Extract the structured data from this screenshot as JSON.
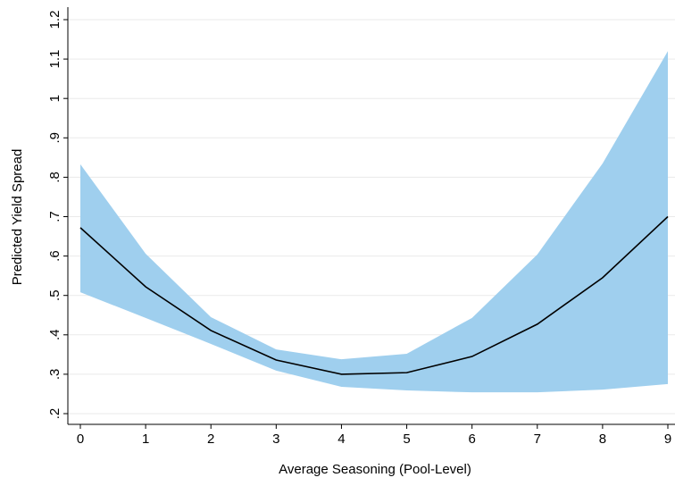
{
  "chart_data": {
    "type": "line",
    "x_label": "Average Seasoning (Pool-Level)",
    "y_label": "Predicted Yield Spread",
    "x": [
      0,
      1,
      2,
      3,
      4,
      5,
      6,
      7,
      8,
      9
    ],
    "values": [
      0.672,
      0.522,
      0.411,
      0.336,
      0.3,
      0.304,
      0.345,
      0.427,
      0.545,
      0.7
    ],
    "color": "#000000",
    "band": {
      "upper": [
        0.833,
        0.606,
        0.445,
        0.363,
        0.338,
        0.352,
        0.443,
        0.604,
        0.835,
        1.12
      ],
      "lower": [
        0.508,
        0.443,
        0.377,
        0.309,
        0.268,
        0.259,
        0.254,
        0.254,
        0.261,
        0.275
      ],
      "color": "#9fcfee"
    },
    "xlim": [
      0,
      9
    ],
    "xticks": [
      0,
      1,
      2,
      3,
      4,
      5,
      6,
      7,
      8,
      9
    ],
    "ylim": [
      0.2,
      1.2
    ],
    "yticks": [
      {
        "value": 0.2,
        "label": ".2"
      },
      {
        "value": 0.3,
        "label": ".3"
      },
      {
        "value": 0.4,
        "label": ".4"
      },
      {
        "value": 0.5,
        "label": ".5"
      },
      {
        "value": 0.6,
        "label": ".6"
      },
      {
        "value": 0.7,
        "label": ".7"
      },
      {
        "value": 0.8,
        "label": ".8"
      },
      {
        "value": 0.9,
        "label": ".9"
      },
      1,
      1.1,
      1.2
    ],
    "grid": true
  }
}
